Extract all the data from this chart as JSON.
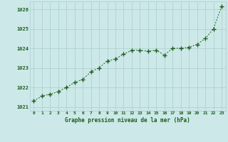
{
  "x": [
    0,
    1,
    2,
    3,
    4,
    5,
    6,
    7,
    8,
    9,
    10,
    11,
    12,
    13,
    14,
    15,
    16,
    17,
    18,
    19,
    20,
    21,
    22,
    23
  ],
  "y": [
    1021.3,
    1021.55,
    1021.65,
    1021.78,
    1022.0,
    1022.25,
    1022.4,
    1022.8,
    1023.0,
    1023.35,
    1023.45,
    1023.7,
    1023.9,
    1023.9,
    1023.85,
    1023.9,
    1023.65,
    1024.0,
    1024.0,
    1024.05,
    1024.2,
    1024.5,
    1025.0,
    1026.15
  ],
  "line_color": "#1a5c1a",
  "marker": "+",
  "marker_size": 4,
  "bg_color": "#cce8e8",
  "grid_color": "#aacece",
  "xlabel": "Graphe pression niveau de la mer (hPa)",
  "xlabel_color": "#1a5c1a",
  "tick_label_color": "#1a5c1a",
  "ylim": [
    1020.8,
    1026.4
  ],
  "yticks": [
    1021,
    1022,
    1023,
    1024,
    1025,
    1026
  ],
  "xlim": [
    -0.5,
    23.5
  ],
  "xticks": [
    0,
    1,
    2,
    3,
    4,
    5,
    6,
    7,
    8,
    9,
    10,
    11,
    12,
    13,
    14,
    15,
    16,
    17,
    18,
    19,
    20,
    21,
    22,
    23
  ]
}
